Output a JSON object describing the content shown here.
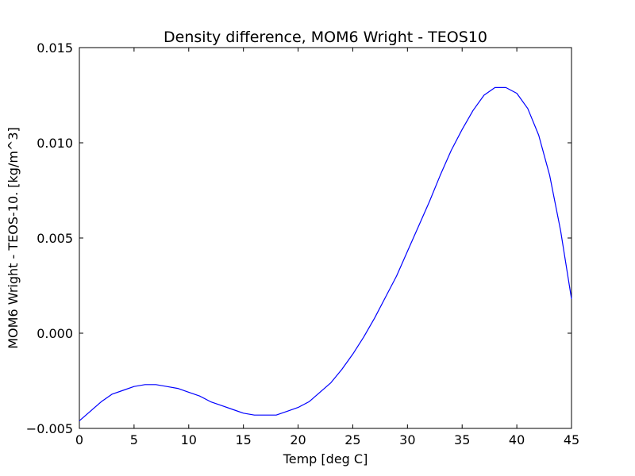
{
  "chart_data": {
    "type": "line",
    "title": "Density difference, MOM6 Wright - TEOS10",
    "xlabel": "Temp [deg C]",
    "ylabel": "MOM6 Wright - TEOS-10. [kg/m^3]",
    "xlim": [
      0,
      45
    ],
    "ylim": [
      -0.005,
      0.015
    ],
    "xticks": [
      0,
      5,
      10,
      15,
      20,
      25,
      30,
      35,
      40,
      45
    ],
    "xtick_labels": [
      "0",
      "5",
      "10",
      "15",
      "20",
      "25",
      "30",
      "35",
      "40",
      "45"
    ],
    "yticks": [
      -0.005,
      0.0,
      0.005,
      0.01,
      0.015
    ],
    "ytick_labels": [
      "−0.005",
      "0.000",
      "0.005",
      "0.010",
      "0.015"
    ],
    "grid": false,
    "series": [
      {
        "name": "Wright - TEOS10",
        "color": "#0000ff",
        "x": [
          0,
          1,
          2,
          3,
          4,
          5,
          6,
          7,
          8,
          9,
          10,
          11,
          12,
          13,
          14,
          15,
          16,
          17,
          18,
          19,
          20,
          21,
          22,
          23,
          24,
          25,
          26,
          27,
          28,
          29,
          30,
          31,
          32,
          33,
          34,
          35,
          36,
          37,
          38,
          39,
          40,
          41,
          42,
          43,
          44,
          45
        ],
        "y": [
          -0.0046,
          -0.0041,
          -0.0036,
          -0.0032,
          -0.003,
          -0.0028,
          -0.0027,
          -0.0027,
          -0.0028,
          -0.0029,
          -0.0031,
          -0.0033,
          -0.0036,
          -0.0038,
          -0.004,
          -0.0042,
          -0.0043,
          -0.0043,
          -0.0043,
          -0.0041,
          -0.0039,
          -0.0036,
          -0.0031,
          -0.0026,
          -0.0019,
          -0.0011,
          -0.0002,
          0.0008,
          0.0019,
          0.003,
          0.0043,
          0.0056,
          0.0069,
          0.0083,
          0.0096,
          0.0107,
          0.0117,
          0.0125,
          0.0129,
          0.0129,
          0.0126,
          0.0118,
          0.0104,
          0.0083,
          0.0054,
          0.0018
        ]
      }
    ]
  }
}
